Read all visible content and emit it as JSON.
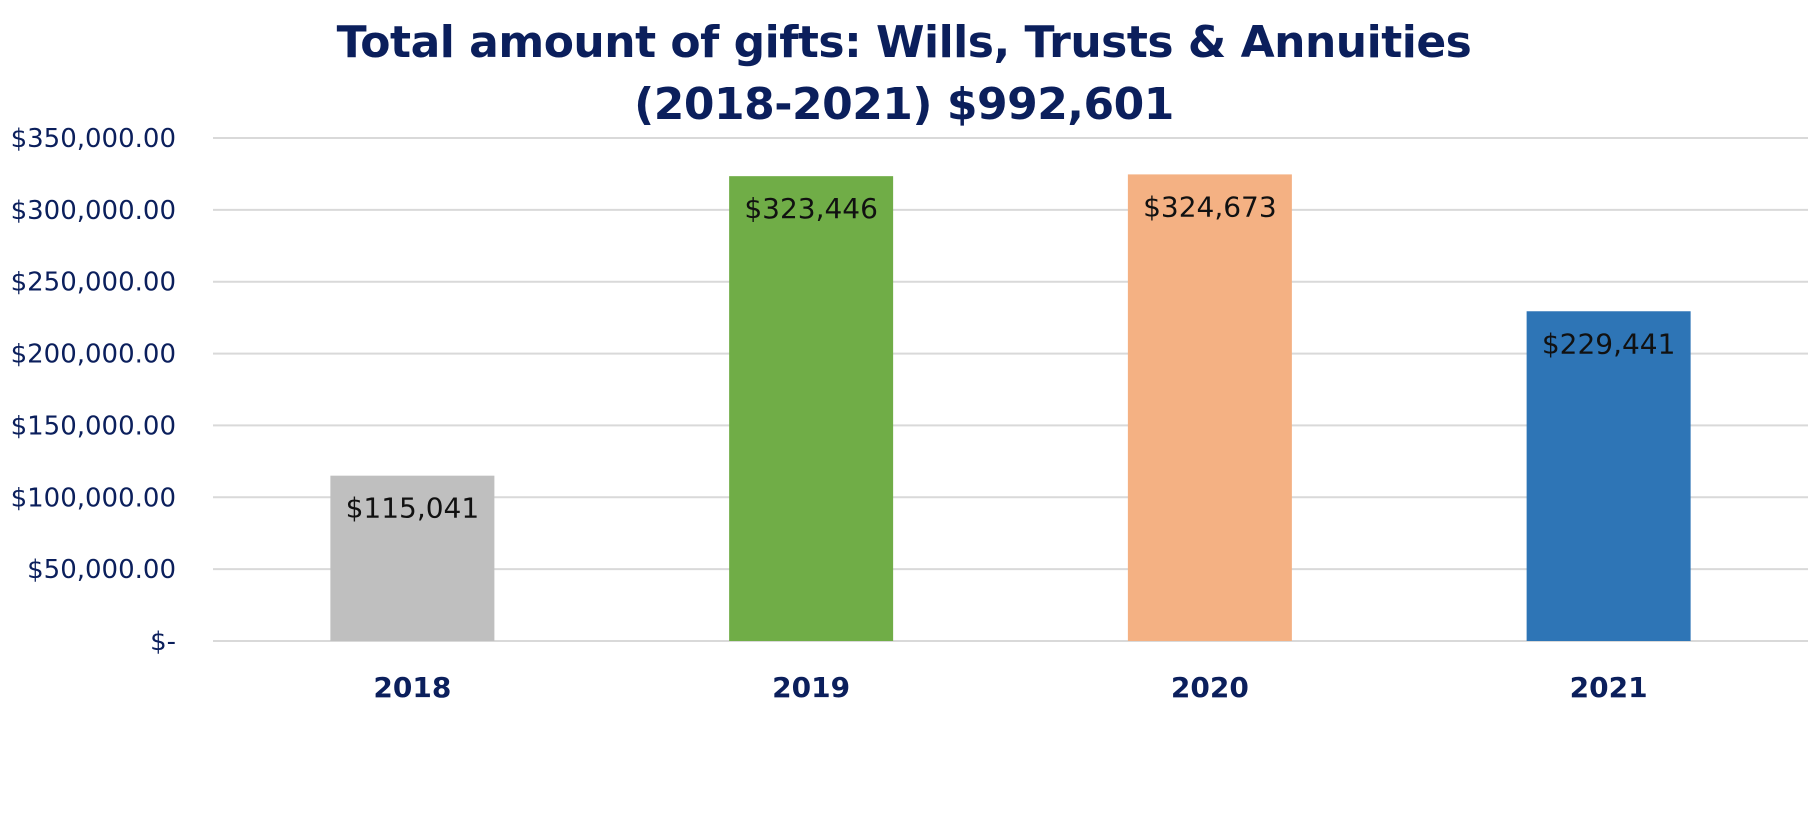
{
  "chart_data": {
    "type": "bar",
    "title": "Total amount of gifts: Wills, Trusts & Annuities",
    "subtitle": "(2018-2021) $992,601",
    "xlabel": "",
    "ylabel": "",
    "categories": [
      "2018",
      "2019",
      "2020",
      "2021"
    ],
    "values": [
      115041,
      323446,
      324673,
      229441
    ],
    "data_labels": [
      "$115,041",
      "$323,446",
      "$324,673",
      "$229,441"
    ],
    "bar_colors": [
      "#bfbfbf",
      "#70ad47",
      "#f4b183",
      "#2e75b6"
    ],
    "ylim": [
      0,
      350000
    ],
    "yticks": [
      0,
      50000,
      100000,
      150000,
      200000,
      250000,
      300000,
      350000
    ],
    "ytick_labels": [
      "$-",
      "$50,000.00",
      "$100,000.00",
      "$150,000.00",
      "$200,000.00",
      "$250,000.00",
      "$300,000.00",
      "$350,000.00"
    ],
    "grid": true,
    "legend": "none"
  },
  "colors": {
    "title": "#0b1f5c",
    "axis_text": "#0b1f5c",
    "gridline": "#d9d9d9",
    "data_label": "#111111"
  }
}
